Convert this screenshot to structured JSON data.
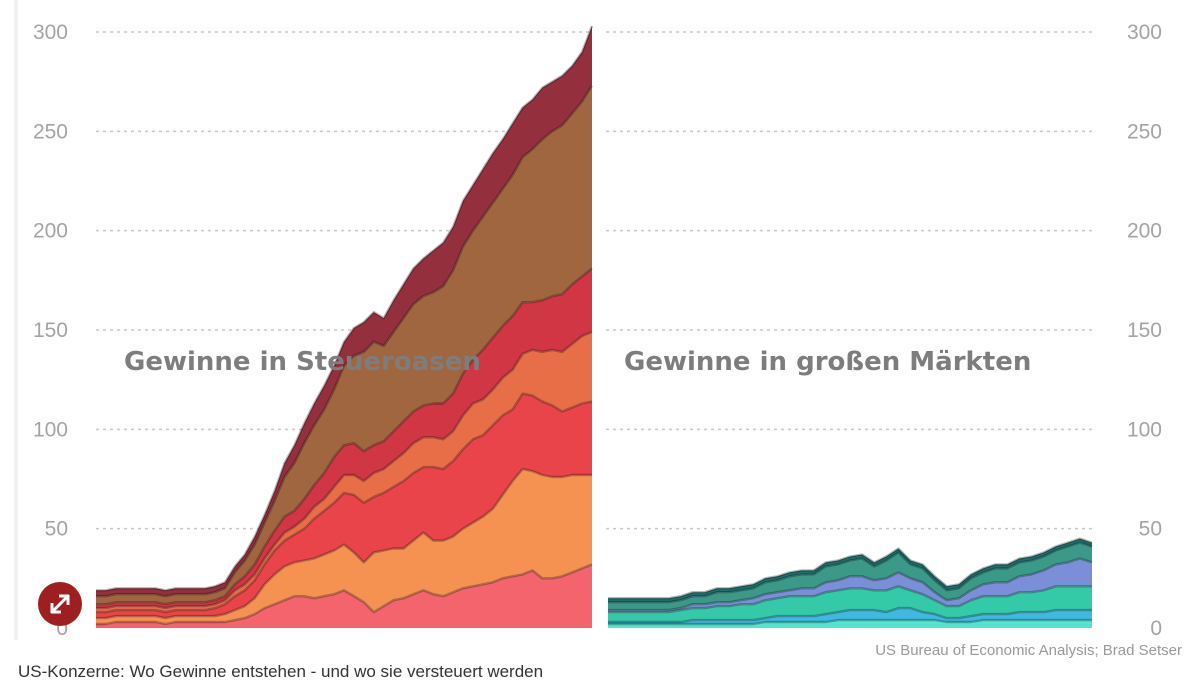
{
  "chart_data": [
    {
      "type": "area",
      "panel_title": "Gewinne in Steueroasen",
      "ylim": [
        0,
        300
      ],
      "yticks": [
        "0",
        "50",
        "100",
        "150",
        "200",
        "250",
        "300"
      ],
      "grid": true,
      "stacked": true,
      "x": [
        0,
        1,
        2,
        3,
        4,
        5,
        6,
        7,
        8,
        9,
        10,
        11,
        12,
        13,
        14,
        15,
        16,
        17,
        18,
        19,
        20,
        21,
        22,
        23,
        24,
        25,
        26,
        27,
        28,
        29,
        30,
        31,
        32,
        33,
        34,
        35,
        36,
        37,
        38,
        39,
        40,
        41,
        42,
        43,
        44,
        45,
        46,
        47,
        48,
        49,
        50
      ],
      "series": [
        {
          "color": "#f3646c",
          "values": [
            2,
            2,
            3,
            3,
            3,
            3,
            3,
            2,
            3,
            3,
            3,
            3,
            3,
            3,
            4,
            5,
            7,
            10,
            12,
            14,
            16,
            16,
            15,
            16,
            17,
            19,
            16,
            13,
            8,
            11,
            14,
            15,
            17,
            19,
            17,
            16,
            18,
            20,
            21,
            22,
            23,
            25,
            26,
            27,
            29,
            25,
            25,
            26,
            28,
            30,
            32
          ]
        },
        {
          "color": "#f59252",
          "values": [
            3,
            3,
            3,
            3,
            3,
            3,
            3,
            3,
            3,
            3,
            3,
            3,
            3,
            4,
            5,
            6,
            8,
            12,
            15,
            17,
            17,
            18,
            20,
            21,
            22,
            23,
            22,
            20,
            30,
            28,
            26,
            25,
            27,
            29,
            27,
            28,
            28,
            30,
            32,
            34,
            37,
            42,
            48,
            53,
            50,
            52,
            51,
            50,
            49,
            47,
            45
          ]
        },
        {
          "color": "#e84449",
          "values": [
            3,
            3,
            3,
            3,
            3,
            3,
            3,
            3,
            3,
            3,
            3,
            3,
            4,
            5,
            7,
            8,
            9,
            10,
            12,
            13,
            14,
            16,
            20,
            22,
            24,
            26,
            29,
            30,
            28,
            29,
            31,
            34,
            34,
            33,
            37,
            36,
            38,
            40,
            42,
            41,
            42,
            40,
            36,
            38,
            38,
            37,
            36,
            33,
            34,
            36,
            37
          ]
        },
        {
          "color": "#e86e48",
          "values": [
            2,
            2,
            2,
            2,
            2,
            2,
            2,
            2,
            2,
            2,
            2,
            2,
            2,
            2,
            3,
            3,
            3,
            3,
            3,
            4,
            4,
            5,
            6,
            6,
            8,
            9,
            10,
            11,
            12,
            12,
            13,
            14,
            15,
            15,
            15,
            15,
            15,
            17,
            18,
            18,
            18,
            19,
            20,
            20,
            23,
            25,
            28,
            30,
            32,
            34,
            35
          ]
        },
        {
          "color": "#d13645",
          "values": [
            2,
            2,
            2,
            2,
            2,
            2,
            2,
            2,
            2,
            2,
            2,
            2,
            2,
            2,
            3,
            4,
            5,
            6,
            7,
            8,
            8,
            10,
            11,
            13,
            15,
            15,
            16,
            15,
            14,
            14,
            15,
            16,
            16,
            16,
            17,
            18,
            19,
            21,
            22,
            25,
            26,
            26,
            27,
            26,
            24,
            26,
            27,
            29,
            30,
            30,
            32
          ]
        },
        {
          "color": "#a0663f",
          "values": [
            4,
            4,
            4,
            4,
            4,
            4,
            4,
            4,
            4,
            4,
            4,
            4,
            4,
            4,
            6,
            8,
            10,
            12,
            15,
            20,
            24,
            28,
            30,
            32,
            34,
            40,
            44,
            50,
            52,
            48,
            50,
            52,
            54,
            55,
            56,
            59,
            62,
            64,
            65,
            67,
            68,
            69,
            71,
            73,
            77,
            81,
            83,
            85,
            86,
            88,
            92
          ]
        },
        {
          "color": "#94303d",
          "values": [
            3,
            3,
            3,
            3,
            3,
            3,
            3,
            3,
            3,
            3,
            3,
            3,
            3,
            3,
            3,
            3,
            4,
            4,
            5,
            7,
            9,
            10,
            11,
            12,
            12,
            12,
            14,
            15,
            15,
            14,
            16,
            17,
            18,
            19,
            21,
            22,
            22,
            23,
            23,
            24,
            25,
            25,
            26,
            25,
            25,
            26,
            25,
            25,
            24,
            25,
            30
          ]
        }
      ]
    },
    {
      "type": "area",
      "panel_title": "Gewinne in großen Märkten",
      "ylim": [
        0,
        300
      ],
      "yticks": [
        "0",
        "50",
        "100",
        "150",
        "200",
        "250",
        "300"
      ],
      "grid": true,
      "stacked": true,
      "x": [
        0,
        1,
        2,
        3,
        4,
        5,
        6,
        7,
        8,
        9,
        10,
        11,
        12,
        13,
        14,
        15,
        16,
        17,
        18,
        19,
        20,
        21,
        22,
        23,
        24,
        25,
        26,
        27,
        28,
        29,
        30,
        31,
        32,
        33,
        34,
        35,
        36,
        37,
        38,
        39,
        40
      ],
      "series": [
        {
          "color": "#52e6ce",
          "values": [
            2,
            2,
            2,
            2,
            2,
            2,
            2,
            2,
            2,
            2,
            2,
            2,
            2,
            3,
            3,
            3,
            3,
            3,
            3,
            4,
            4,
            4,
            4,
            4,
            4,
            4,
            4,
            4,
            3,
            3,
            3,
            4,
            4,
            4,
            4,
            4,
            4,
            4,
            4,
            4,
            4
          ]
        },
        {
          "color": "#41b8e2",
          "values": [
            1,
            1,
            1,
            1,
            1,
            1,
            1,
            2,
            2,
            2,
            2,
            2,
            2,
            2,
            3,
            3,
            3,
            3,
            4,
            4,
            5,
            5,
            5,
            4,
            6,
            6,
            4,
            3,
            2,
            2,
            3,
            3,
            3,
            3,
            4,
            4,
            4,
            5,
            5,
            5,
            5
          ]
        },
        {
          "color": "#34c9a7",
          "values": [
            5,
            5,
            5,
            5,
            5,
            5,
            6,
            6,
            6,
            7,
            7,
            8,
            8,
            9,
            9,
            10,
            10,
            10,
            11,
            11,
            11,
            11,
            10,
            11,
            11,
            9,
            9,
            7,
            6,
            6,
            8,
            9,
            9,
            9,
            10,
            10,
            11,
            12,
            12,
            12,
            12
          ]
        },
        {
          "color": "#7b8fd8",
          "values": [
            1,
            1,
            1,
            1,
            1,
            1,
            1,
            2,
            2,
            2,
            2,
            2,
            3,
            3,
            3,
            3,
            4,
            4,
            5,
            5,
            6,
            6,
            5,
            6,
            7,
            6,
            6,
            4,
            3,
            4,
            5,
            6,
            7,
            7,
            8,
            9,
            10,
            11,
            12,
            14,
            12
          ]
        },
        {
          "color": "#3a9a87",
          "values": [
            4,
            4,
            4,
            4,
            4,
            4,
            4,
            4,
            4,
            5,
            5,
            5,
            5,
            6,
            6,
            7,
            7,
            7,
            8,
            8,
            8,
            9,
            7,
            9,
            10,
            7,
            7,
            6,
            5,
            5,
            6,
            6,
            7,
            7,
            7,
            7,
            7,
            7,
            8,
            8,
            8
          ]
        },
        {
          "color": "#1e6f6e",
          "values": [
            2,
            2,
            2,
            2,
            2,
            2,
            2,
            2,
            2,
            2,
            2,
            2,
            2,
            2,
            2,
            2,
            2,
            2,
            2,
            2,
            2,
            2,
            2,
            2,
            2,
            2,
            2,
            2,
            2,
            2,
            2,
            2,
            2,
            2,
            2,
            2,
            2,
            2,
            2,
            2,
            2
          ]
        }
      ]
    }
  ],
  "source": "US Bureau of Economic Analysis; Brad Setser",
  "caption": "US-Konzerne: Wo Gewinne entstehen - und wo sie versteuert werden",
  "expand_icon": "expand-arrows-icon"
}
